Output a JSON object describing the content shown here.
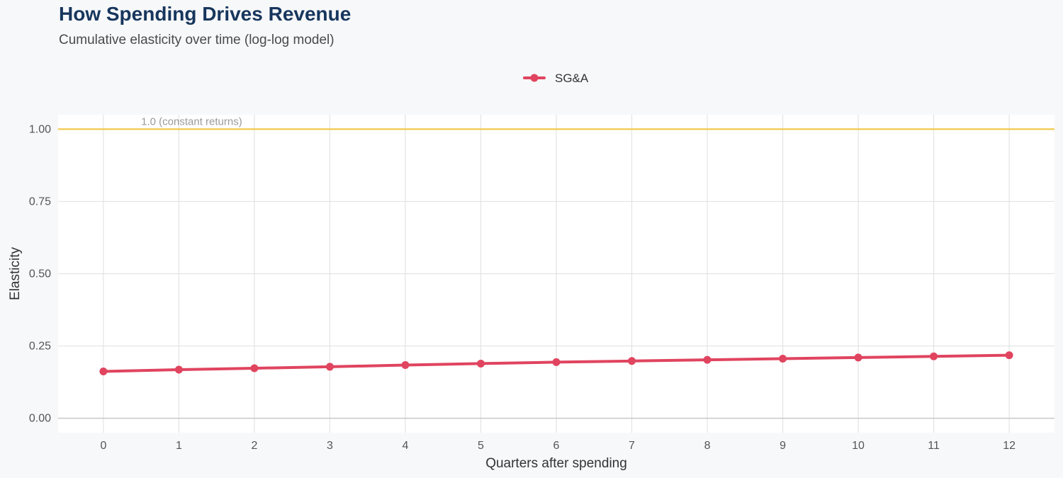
{
  "title": "How Spending Drives Revenue",
  "subtitle": "Cumulative elasticity over time (log-log model)",
  "colors": {
    "series": "#e0445f",
    "reference_line": "#f2c94c",
    "panel": "#ffffff",
    "background": "#f7f8fa",
    "grid": "#e3e3e3",
    "title": "#17365d"
  },
  "chart_data": {
    "type": "line",
    "xlabel": "Quarters after spending",
    "ylabel": "Elasticity",
    "xlim": [
      -0.6,
      12.6
    ],
    "ylim": [
      -0.05,
      1.05
    ],
    "x_ticks": [
      0,
      1,
      2,
      3,
      4,
      5,
      6,
      7,
      8,
      9,
      10,
      11,
      12
    ],
    "x_tick_labels": [
      "0",
      "1",
      "2",
      "3",
      "4",
      "5",
      "6",
      "7",
      "8",
      "9",
      "10",
      "11",
      "12"
    ],
    "y_ticks": [
      0,
      0.25,
      0.5,
      0.75,
      1.0
    ],
    "y_tick_labels": [
      "0.00",
      "0.25",
      "0.50",
      "0.75",
      "1.00"
    ],
    "grid": true,
    "legend_position": "top",
    "x": [
      0,
      1,
      2,
      3,
      4,
      5,
      6,
      7,
      8,
      9,
      10,
      11,
      12
    ],
    "series": [
      {
        "name": "SG&A",
        "values": [
          0.162,
          0.168,
          0.173,
          0.178,
          0.184,
          0.189,
          0.194,
          0.198,
          0.202,
          0.206,
          0.21,
          0.214,
          0.218
        ]
      }
    ],
    "reference_line": {
      "y": 1.0,
      "label": "1.0 (constant returns)"
    }
  }
}
